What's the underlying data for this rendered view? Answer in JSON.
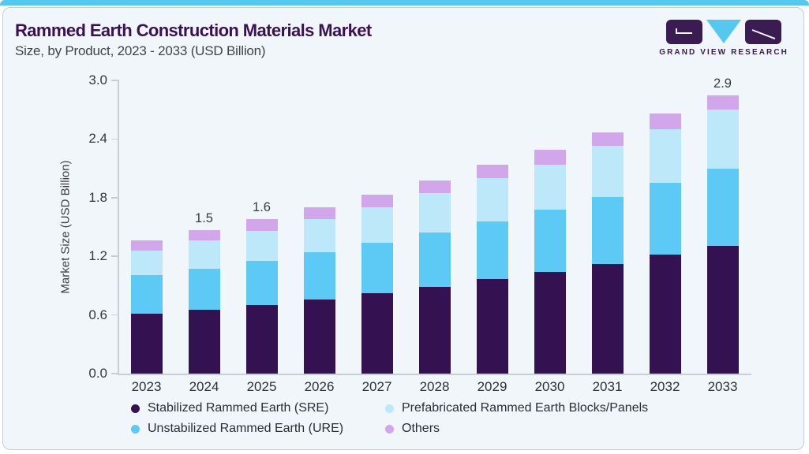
{
  "page": {
    "accent_bar_color": "#55c8f0",
    "card_background": "#f1f6fa"
  },
  "header": {
    "title": "Rammed Earth Construction Materials Market",
    "subtitle": "Size, by Product, 2023 - 2033 (USD Billion)",
    "logo_text": "GRAND VIEW RESEARCH"
  },
  "chart_data": {
    "type": "bar",
    "stacked": true,
    "title": "Rammed Earth Construction Materials Market Size, by Product, 2023 - 2033 (USD Billion)",
    "ylabel": "Market Size (USD Billion)",
    "xlabel": "",
    "ylim": [
      0,
      3.0
    ],
    "yticks": [
      0.0,
      0.6,
      1.2,
      1.8,
      2.4,
      3.0
    ],
    "grid": false,
    "legend_position": "bottom",
    "categories": [
      "2023",
      "2024",
      "2025",
      "2026",
      "2027",
      "2028",
      "2029",
      "2030",
      "2031",
      "2032",
      "2033"
    ],
    "series": [
      {
        "name": "Stabilized Rammed Earth (SRE)",
        "color": "#341150",
        "values": [
          0.61,
          0.65,
          0.7,
          0.76,
          0.82,
          0.89,
          0.97,
          1.04,
          1.12,
          1.22,
          1.31
        ]
      },
      {
        "name": "Unstabilized Rammed Earth (URE)",
        "color": "#5ccaf4",
        "values": [
          0.4,
          0.42,
          0.45,
          0.48,
          0.52,
          0.55,
          0.59,
          0.64,
          0.69,
          0.73,
          0.79
        ]
      },
      {
        "name": "Prefabricated Rammed Earth Blocks/Panels",
        "color": "#bce8f9",
        "values": [
          0.25,
          0.29,
          0.31,
          0.34,
          0.36,
          0.41,
          0.44,
          0.46,
          0.52,
          0.55,
          0.6
        ]
      },
      {
        "name": "Others",
        "color": "#d1a6ea",
        "values": [
          0.1,
          0.11,
          0.12,
          0.12,
          0.13,
          0.13,
          0.14,
          0.15,
          0.14,
          0.16,
          0.15
        ]
      }
    ],
    "bar_labels": {
      "2024": "1.5",
      "2025": "1.6",
      "2033": "2.9"
    }
  }
}
